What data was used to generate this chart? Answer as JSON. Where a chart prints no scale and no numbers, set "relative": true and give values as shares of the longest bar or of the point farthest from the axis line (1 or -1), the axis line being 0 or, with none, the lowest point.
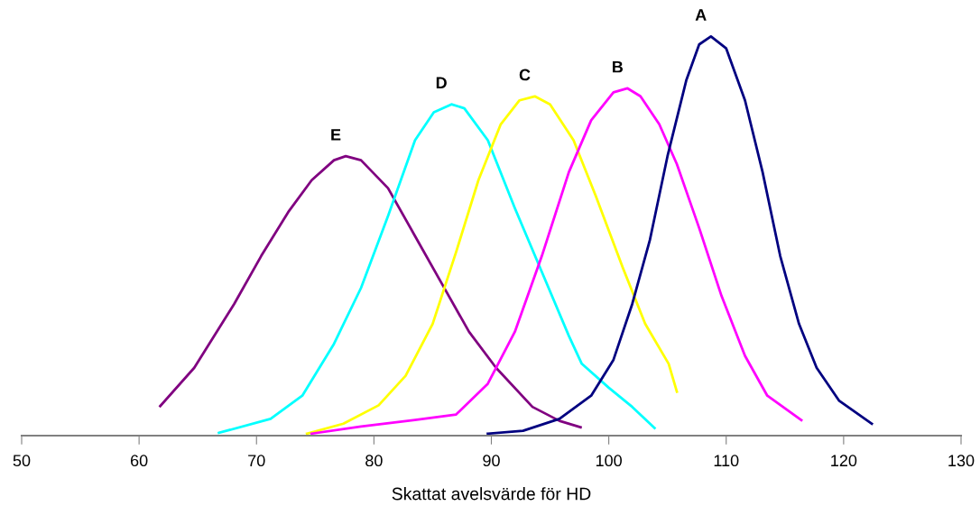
{
  "chart_data": {
    "type": "line",
    "relative": true,
    "xlabel": "Skattat avelsvärde för HD",
    "xlim": [
      50,
      130
    ],
    "xticks": [
      50,
      60,
      70,
      80,
      90,
      100,
      110,
      120,
      130
    ],
    "grid": false,
    "legend": false,
    "marker": "none",
    "line_style": "solid",
    "series": [
      {
        "name": "E",
        "color": "#800080",
        "x": [
          61.8,
          64.7,
          68.1,
          70.4,
          72.7,
          74.7,
          76.6,
          77.6,
          78.9,
          81.2,
          83.5,
          85.8,
          88.1,
          90.4,
          93.5,
          95.8,
          97.6
        ],
        "values": [
          0.074,
          0.17,
          0.33,
          0.45,
          0.56,
          0.64,
          0.69,
          0.7,
          0.69,
          0.62,
          0.5,
          0.38,
          0.26,
          0.17,
          0.072,
          0.037,
          0.021
        ]
      },
      {
        "name": "D",
        "color": "#00ffff",
        "x": [
          66.8,
          71.2,
          73.9,
          76.6,
          78.9,
          81.2,
          83.5,
          85.1,
          86.6,
          87.7,
          89.7,
          92.0,
          94.3,
          96.6,
          97.7,
          100.0,
          102.0,
          103.9
        ],
        "values": [
          0.007,
          0.042,
          0.1,
          0.23,
          0.37,
          0.55,
          0.74,
          0.81,
          0.83,
          0.82,
          0.74,
          0.57,
          0.41,
          0.25,
          0.18,
          0.12,
          0.072,
          0.019
        ]
      },
      {
        "name": "C",
        "color": "#ffff00",
        "x": [
          74.3,
          77.4,
          80.4,
          82.7,
          85.0,
          87.0,
          88.9,
          90.8,
          92.4,
          93.7,
          95.0,
          97.0,
          98.9,
          101.2,
          103.1,
          105.1,
          105.8
        ],
        "values": [
          0.005,
          0.03,
          0.076,
          0.15,
          0.28,
          0.46,
          0.64,
          0.78,
          0.84,
          0.85,
          0.83,
          0.74,
          0.6,
          0.42,
          0.28,
          0.18,
          0.11
        ]
      },
      {
        "name": "B",
        "color": "#ff00ff",
        "x": [
          74.7,
          78.9,
          83.5,
          87.0,
          89.7,
          92.0,
          94.3,
          96.6,
          98.5,
          100.4,
          101.6,
          102.7,
          104.3,
          105.8,
          107.7,
          109.6,
          111.6,
          113.5,
          116.4
        ],
        "values": [
          0.005,
          0.023,
          0.039,
          0.053,
          0.13,
          0.26,
          0.45,
          0.66,
          0.79,
          0.86,
          0.87,
          0.85,
          0.78,
          0.68,
          0.52,
          0.35,
          0.2,
          0.1,
          0.039
        ]
      },
      {
        "name": "A",
        "color": "#000080",
        "x": [
          89.7,
          92.7,
          95.8,
          98.5,
          100.4,
          102.0,
          103.5,
          105.0,
          106.6,
          107.7,
          108.7,
          110.0,
          111.6,
          113.1,
          114.6,
          116.2,
          117.7,
          119.6,
          122.4
        ],
        "values": [
          0.005,
          0.012,
          0.042,
          0.1,
          0.19,
          0.33,
          0.49,
          0.7,
          0.89,
          0.98,
          1.0,
          0.97,
          0.84,
          0.66,
          0.45,
          0.28,
          0.17,
          0.088,
          0.03
        ]
      }
    ]
  }
}
